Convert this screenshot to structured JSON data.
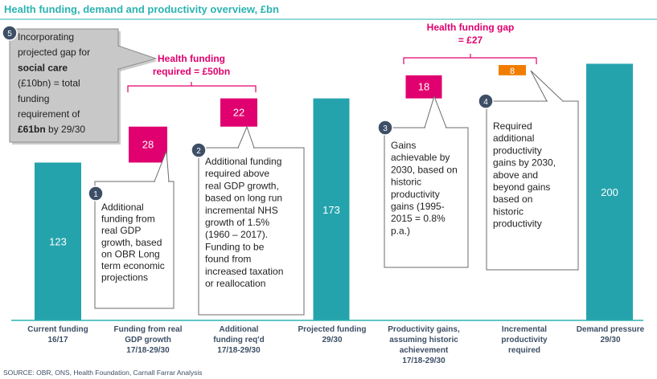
{
  "title": "Health funding, demand and productivity overview, £bn",
  "source": "SOURCE: OBR, ONS, Health Foundation, Carnall Farrar Analysis",
  "colors": {
    "title": "#2bb3b1",
    "bar": "#25a3ad",
    "magenta": "#e0006f",
    "orange": "#f07d00",
    "callout_circle": "#3d4f66",
    "grey_callout": "#c8c8c8",
    "axis_text": "#3d4f66"
  },
  "chart_data": {
    "type": "bar",
    "subtype": "waterfall",
    "ylim": [
      0,
      230
    ],
    "categories": [
      [
        "Current funding",
        "16/17"
      ],
      [
        "Funding from real",
        "GDP growth",
        "17/18-29/30"
      ],
      [
        "Additional",
        "funding req'd",
        "17/18-29/30"
      ],
      [
        "Projected funding",
        "29/30"
      ],
      [
        "Productivity gains,",
        "assuming historic",
        "achievement",
        "17/18-29/30"
      ],
      [
        "Incremental",
        "productivity",
        "required"
      ],
      [
        "Demand pressure",
        "29/30"
      ]
    ],
    "bars": [
      {
        "value": 123,
        "base": 0,
        "label": "123",
        "style": "total"
      },
      {
        "value": 28,
        "base": 123,
        "label": "28",
        "style": "magenta"
      },
      {
        "value": 22,
        "base": 151,
        "label": "22",
        "style": "magenta"
      },
      {
        "value": 173,
        "base": 0,
        "label": "173",
        "style": "total"
      },
      {
        "value": 18,
        "base": 173,
        "label": "18",
        "style": "magenta"
      },
      {
        "value": 8,
        "base": 191,
        "label": "8",
        "style": "orange"
      },
      {
        "value": 200,
        "base": 0,
        "label": "200",
        "style": "total"
      }
    ],
    "brackets": [
      {
        "label_lines": [
          "Health funding",
          "required = £50bn"
        ]
      },
      {
        "label_lines": [
          "Health funding gap",
          "= £27"
        ]
      }
    ],
    "callouts": [
      {
        "num": "1",
        "lines": [
          "Additional",
          "funding from",
          "real GDP",
          "growth, based",
          "on OBR Long",
          "term economic",
          "projections"
        ]
      },
      {
        "num": "2",
        "lines": [
          "Additional funding",
          "required above",
          "real GDP growth,",
          "based on long run",
          "incremental NHS",
          "growth of 1.5%",
          "(1960 – 2017).",
          "Funding to be",
          "found from",
          "increased taxation",
          "or reallocation"
        ]
      },
      {
        "num": "3",
        "lines": [
          "Gains",
          "achievable by",
          "2030, based on",
          "historic",
          "productivity",
          "gains (1995-",
          "2015 = 0.8%",
          "p.a.)"
        ]
      },
      {
        "num": "4",
        "lines": [
          "Required",
          "additional",
          "productivity",
          "gains by 2030,",
          "above and",
          "beyond gains",
          "based on",
          "historic",
          "productivity"
        ]
      },
      {
        "num": "5",
        "segments": [
          [
            {
              "t": "Incorporating"
            }
          ],
          [
            {
              "t": "projected gap for"
            }
          ],
          [
            {
              "t": "social care",
              "b": true
            }
          ],
          [
            {
              "t": "(£10bn) = total"
            }
          ],
          [
            {
              "t": "funding"
            }
          ],
          [
            {
              "t": "requirement of"
            }
          ],
          [
            {
              "t": "£61bn",
              "b": true
            },
            {
              "t": " by 29/30"
            }
          ]
        ]
      }
    ]
  }
}
